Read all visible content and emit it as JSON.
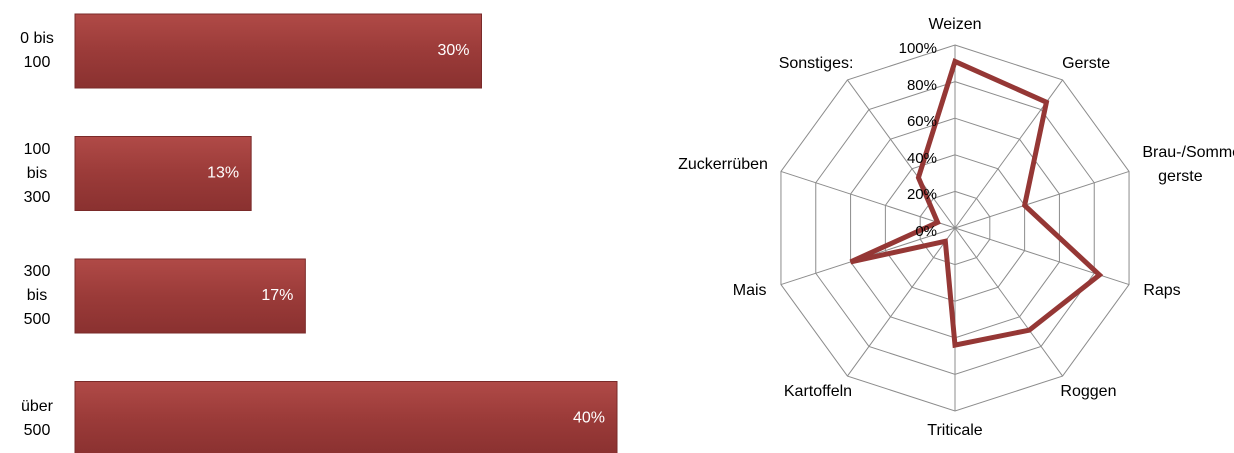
{
  "chart_data": [
    {
      "type": "bar",
      "orientation": "horizontal",
      "categories": [
        "0 bis 100",
        "100 bis 300",
        "300 bis 500",
        "über 500"
      ],
      "values": [
        30,
        13,
        17,
        40
      ],
      "value_labels": [
        "30%",
        "13%",
        "17%",
        "40%"
      ],
      "color": "#9b3b39"
    },
    {
      "type": "radar",
      "categories": [
        "Weizen",
        "Gerste",
        "Brau-/Sommer-gerste",
        "Raps",
        "Roggen",
        "Triticale",
        "Kartoffeln",
        "Mais",
        "Zuckerrüben",
        "Sonstiges:"
      ],
      "values": [
        91,
        85,
        40,
        83,
        69,
        64,
        9,
        60,
        10,
        34
      ],
      "color": "#953735",
      "ylim": [
        0,
        100
      ],
      "yticks": [
        {
          "value": 0,
          "label": "0%"
        },
        {
          "value": 20,
          "label": "20%"
        },
        {
          "value": 40,
          "label": "40%"
        },
        {
          "value": 60,
          "label": "60%"
        },
        {
          "value": 80,
          "label": "80%"
        },
        {
          "value": 100,
          "label": "100%"
        }
      ],
      "grid": true
    }
  ]
}
